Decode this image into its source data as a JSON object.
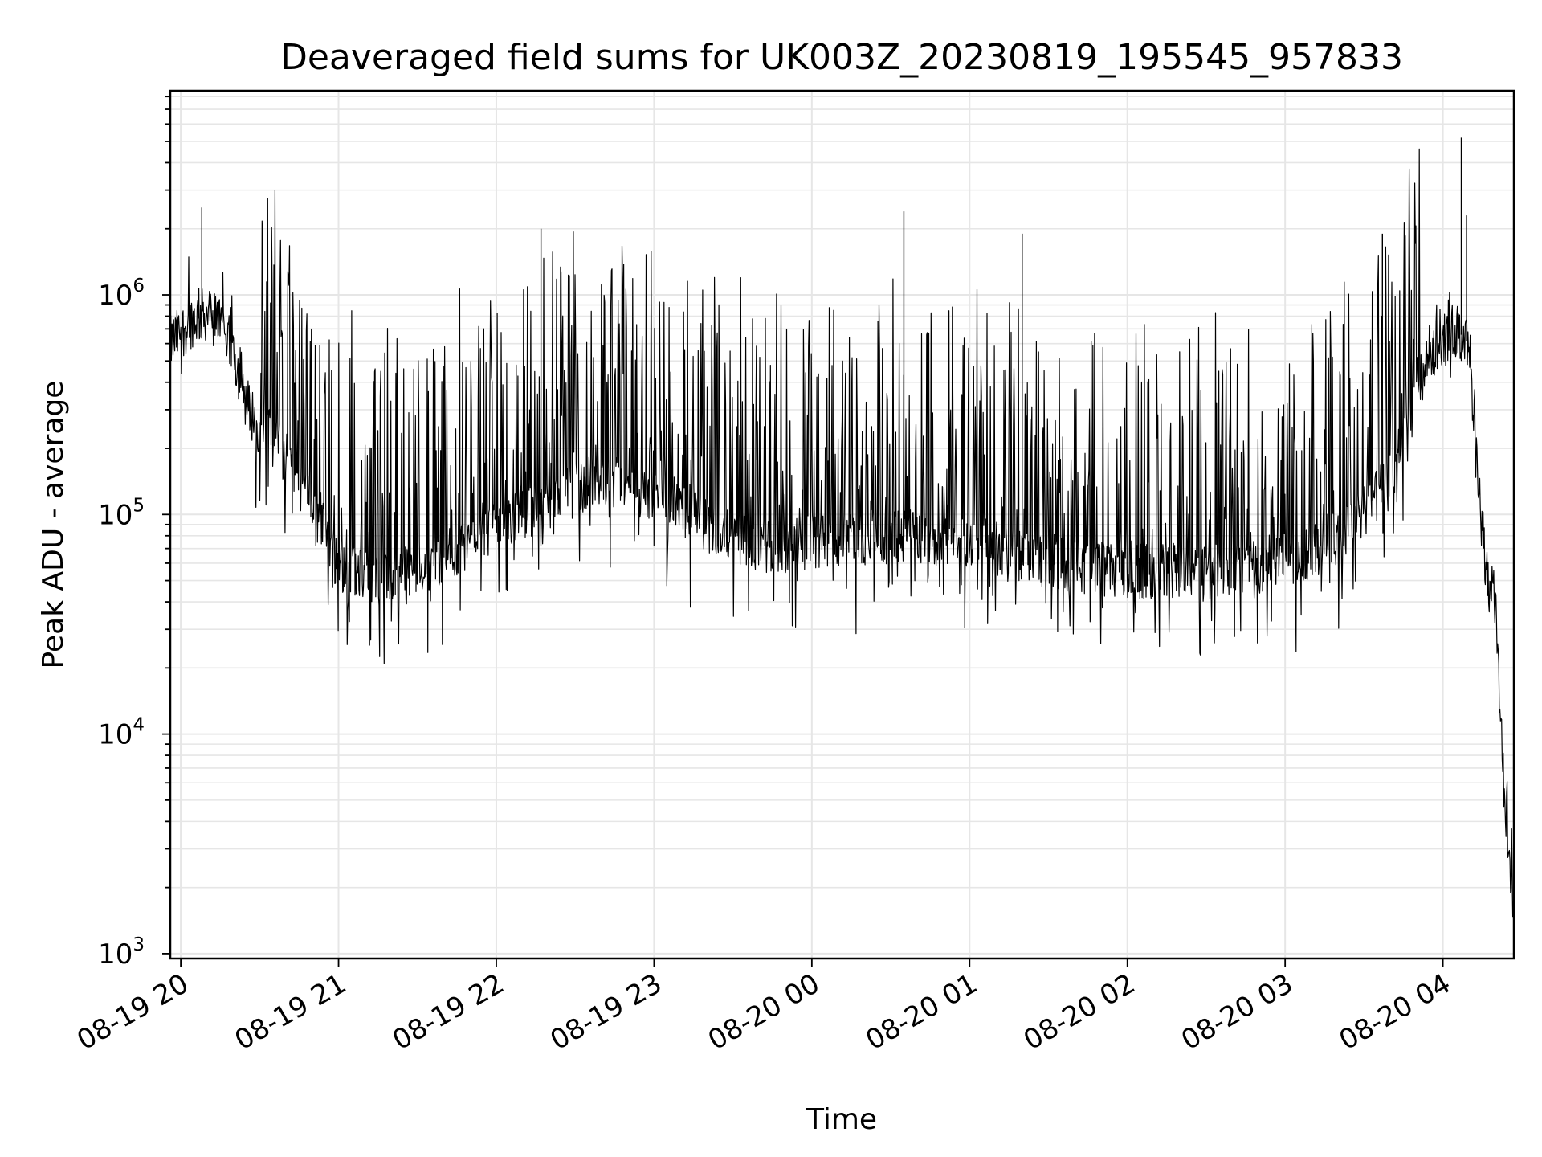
{
  "chart_data": {
    "type": "line",
    "title": "Deaveraged field sums for UK003Z_20230819_195545_957833",
    "xlabel": "Time",
    "ylabel": "Peak ADU - average",
    "yscale": "log",
    "ylim": [
      950,
      8500000
    ],
    "xlim": [
      "2023-08-19T19:56:00",
      "2023-08-20T04:27:00"
    ],
    "grid": true,
    "line_color": "#000000",
    "grid_color": "#e6e6e6",
    "x_ticks": [
      "08-19 20",
      "08-19 21",
      "08-19 22",
      "08-19 23",
      "08-20 00",
      "08-20 01",
      "08-20 02",
      "08-20 03",
      "08-20 04"
    ],
    "y_ticks": [
      {
        "value": 1000,
        "base": "10",
        "exp": "3"
      },
      {
        "value": 10000,
        "base": "10",
        "exp": "4"
      },
      {
        "value": 100000,
        "base": "10",
        "exp": "5"
      },
      {
        "value": 1000000,
        "base": "10",
        "exp": "6"
      }
    ],
    "series": [
      {
        "x": [
          "2023-08-19T19:56:00",
          "2023-08-19T20:05:00",
          "2023-08-19T20:10:00",
          "2023-08-19T20:15:00",
          "2023-08-19T20:20:00",
          "2023-08-19T20:25:00",
          "2023-08-19T20:30:00",
          "2023-08-19T20:40:00",
          "2023-08-19T20:50:00",
          "2023-08-19T21:00:00",
          "2023-08-19T21:15:00",
          "2023-08-19T21:30:00",
          "2023-08-19T21:45:00",
          "2023-08-19T22:00:00",
          "2023-08-19T22:20:00",
          "2023-08-19T22:40:00",
          "2023-08-19T23:00:00",
          "2023-08-19T23:20:00",
          "2023-08-19T23:40:00",
          "2023-08-20T00:00:00",
          "2023-08-20T00:30:00",
          "2023-08-20T01:00:00",
          "2023-08-20T01:30:00",
          "2023-08-20T02:00:00",
          "2023-08-20T02:30:00",
          "2023-08-20T03:00:00",
          "2023-08-20T03:20:00",
          "2023-08-20T03:40:00",
          "2023-08-20T03:55:00",
          "2023-08-20T04:05:00",
          "2023-08-20T04:10:00",
          "2023-08-20T04:13:00",
          "2023-08-20T04:17:00",
          "2023-08-20T04:20:00",
          "2023-08-20T04:23:00",
          "2023-08-20T04:25:00",
          "2023-08-20T04:27:00"
        ],
        "y": [
          600000,
          780000,
          820000,
          750000,
          550000,
          320000,
          250000,
          180000,
          110000,
          60000,
          50000,
          55000,
          70000,
          90000,
          110000,
          150000,
          120000,
          90000,
          70000,
          75000,
          80000,
          75000,
          60000,
          55000,
          55000,
          60000,
          80000,
          140000,
          550000,
          700000,
          600000,
          150000,
          50000,
          40000,
          6000,
          2500,
          1400
        ]
      }
    ],
    "spikes": [
      {
        "x": "2023-08-19T20:08:00",
        "y": 2500000
      },
      {
        "x": "2023-08-19T22:17:00",
        "y": 2000000
      },
      {
        "x": "2023-08-20T00:35:00",
        "y": 2400000
      },
      {
        "x": "2023-08-20T01:20:00",
        "y": 1900000
      },
      {
        "x": "2023-08-20T03:37:00",
        "y": 1900000
      },
      {
        "x": "2023-08-20T04:07:00",
        "y": 5200000
      },
      {
        "x": "2023-08-20T04:09:00",
        "y": 2300000
      }
    ]
  }
}
